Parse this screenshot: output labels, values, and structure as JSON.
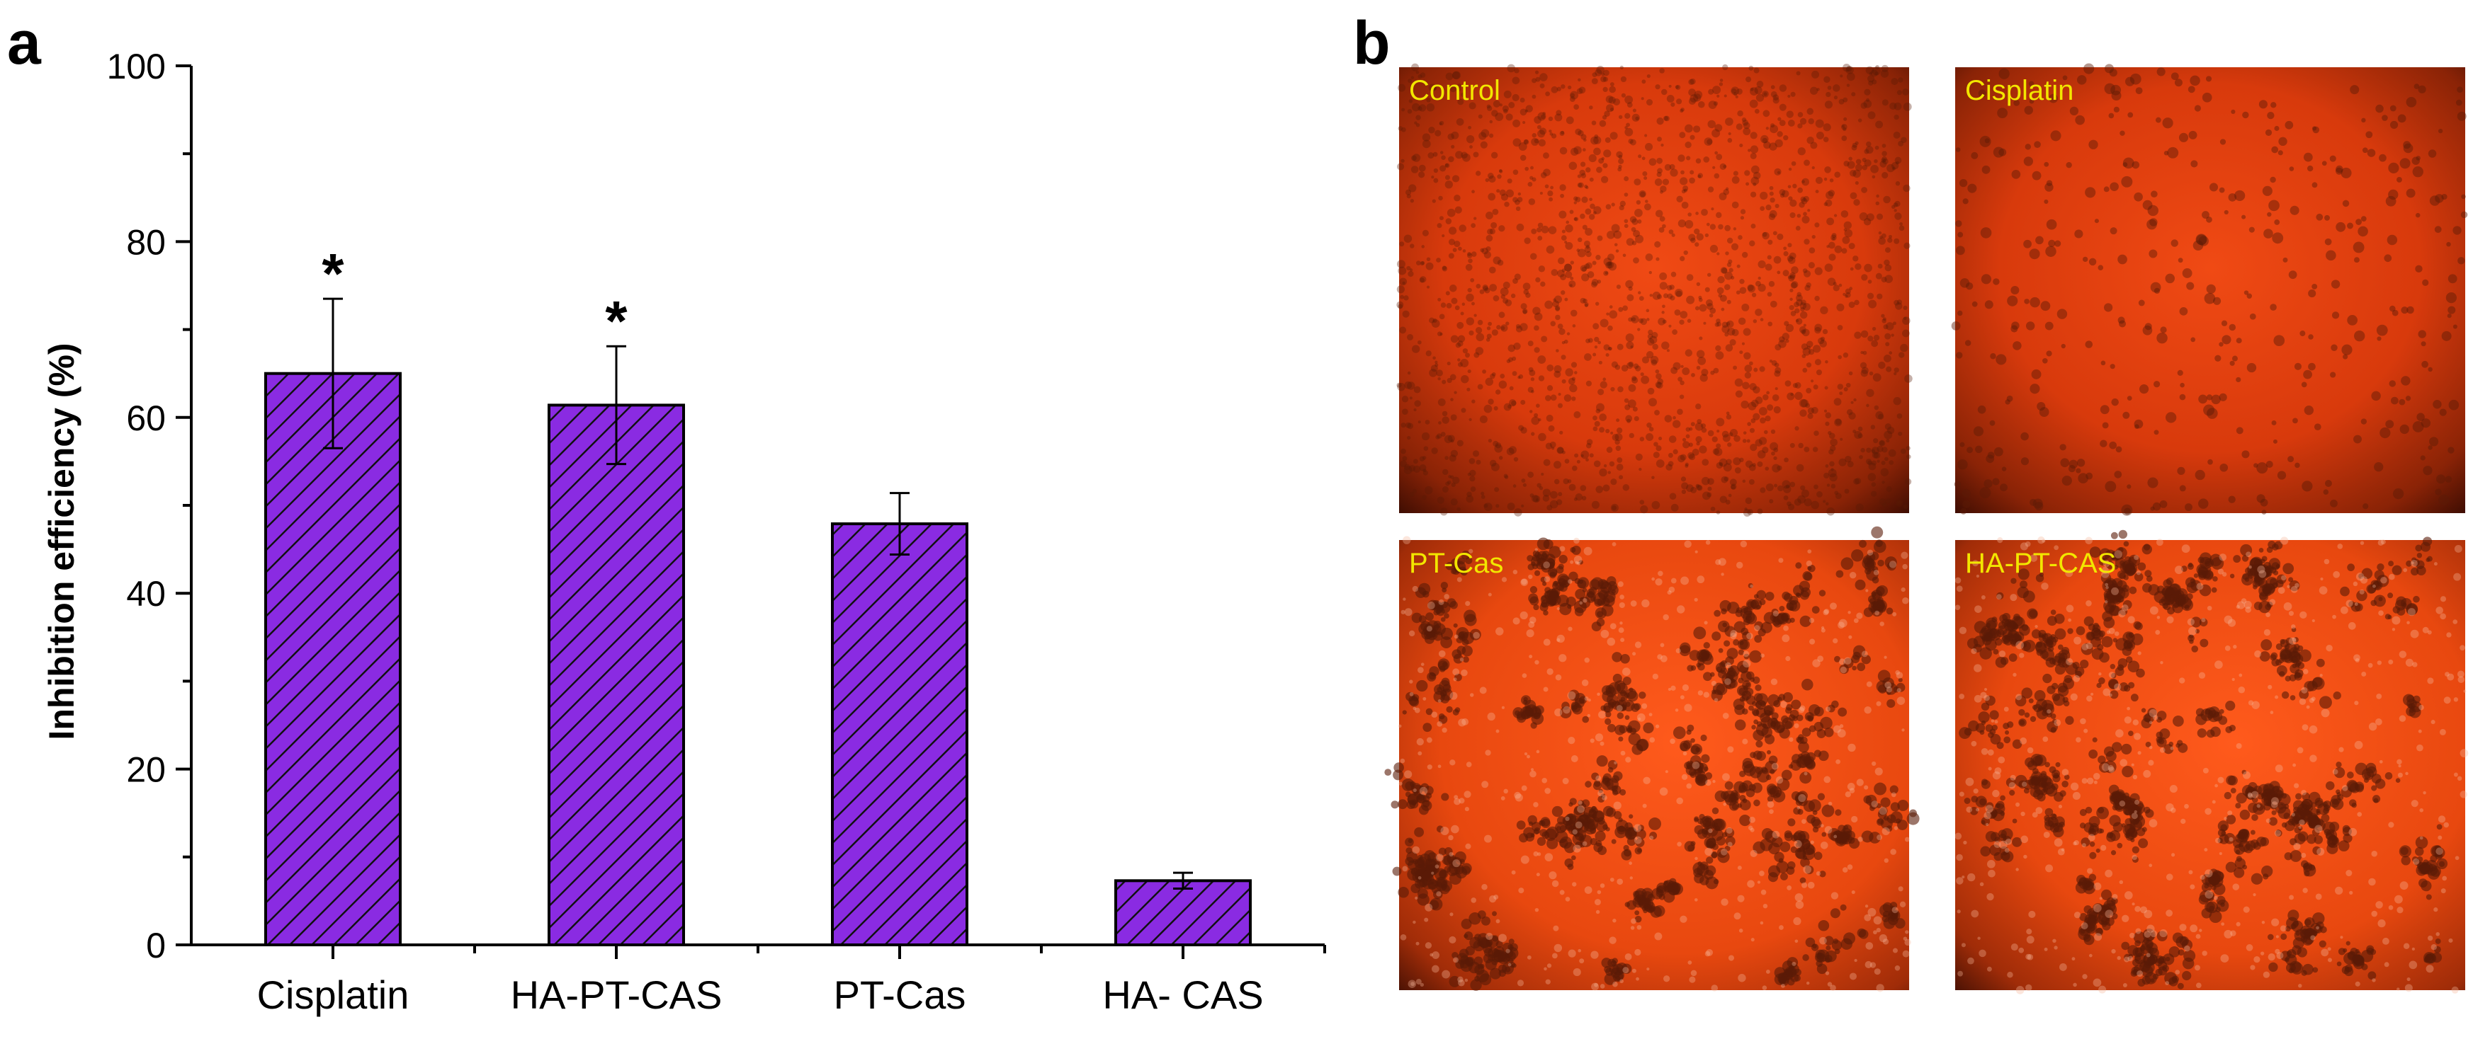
{
  "panels": {
    "a_label": "a",
    "b_label": "b"
  },
  "chart_data": {
    "type": "bar",
    "categories": [
      "Cisplatin",
      "HA-PT-CAS",
      "PT-Cas",
      "HA- CAS"
    ],
    "values": [
      65.0,
      61.4,
      47.9,
      7.3
    ],
    "error": [
      8.5,
      6.7,
      3.5,
      0.9
    ],
    "significance": [
      "*",
      "*",
      "",
      ""
    ],
    "ylabel": "Inhibition efficiency (%)",
    "xlabel": "",
    "ylim": [
      0,
      100
    ],
    "yticks": [
      0,
      20,
      40,
      60,
      80,
      100
    ],
    "ytick_labels": [
      "0",
      "20",
      "40",
      "60",
      "80",
      "100"
    ],
    "bar_fill": "#8a2be2",
    "bar_hatch": "diagonal",
    "grid": false,
    "legend": "none"
  },
  "micrographs": [
    {
      "label": "Control",
      "density": "confluent"
    },
    {
      "label": "Cisplatin",
      "density": "sparse"
    },
    {
      "label": "PT-Cas",
      "density": "clustered"
    },
    {
      "label": "HA-PT-CAS",
      "density": "clustered"
    }
  ],
  "colors": {
    "micro_label": "#f2e600",
    "micro_bg_center": "#f04a14",
    "micro_bg_edge": "#3a0c02",
    "cell_dark": "#5a1a06"
  }
}
